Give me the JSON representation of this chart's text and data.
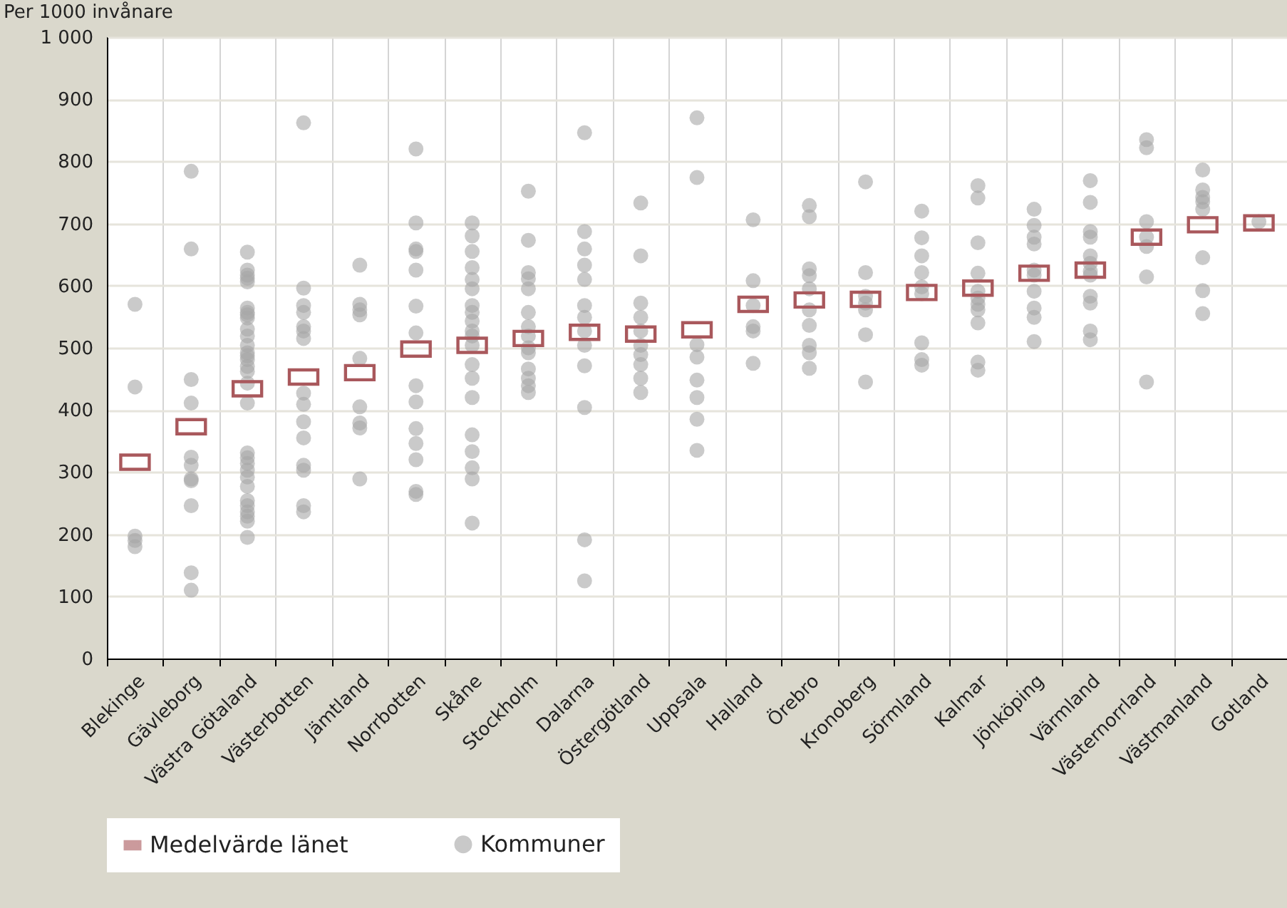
{
  "chart_data": {
    "type": "scatter",
    "ylabel": "Per 1000 invånare",
    "categories": [
      "Blekinge",
      "Gävleborg",
      "Västra Götaland",
      "Västerbotten",
      "Jämtland",
      "Norrbotten",
      "Skåne",
      "Stockholm",
      "Dalarna",
      "Östergötland",
      "Uppsala",
      "Halland",
      "Örebro",
      "Kronoberg",
      "Sörmland",
      "Kalmar",
      "Jönköping",
      "Värmland",
      "Västernorrland",
      "Västmanland",
      "Gotland"
    ],
    "ylim": [
      0,
      1000
    ],
    "yticks": [
      0,
      100,
      200,
      300,
      400,
      500,
      600,
      700,
      800,
      900,
      {
        "value": 1000,
        "label": "1 000"
      }
    ],
    "grid": true,
    "legend": "bottom",
    "series": [
      {
        "name": "Medelvärde länet",
        "marker": "square",
        "color": "#a9585c",
        "x": [
          "Blekinge",
          "Gävleborg",
          "Västra Götaland",
          "Västerbotten",
          "Jämtland",
          "Norrbotten",
          "Skåne",
          "Stockholm",
          "Dalarna",
          "Östergötland",
          "Uppsala",
          "Halland",
          "Örebro",
          "Kronoberg",
          "Sörmland",
          "Kalmar",
          "Jönköping",
          "Värmland",
          "Västernorrland",
          "Västmanland",
          "Gotland"
        ],
        "values": [
          316,
          373,
          434,
          453,
          460,
          498,
          504,
          515,
          525,
          522,
          529,
          570,
          577,
          578,
          589,
          596,
          620,
          625,
          678,
          698,
          701
        ]
      },
      {
        "name": "Kommuner",
        "marker": "circle",
        "color": "#a6a6a6",
        "x": [
          "Blekinge",
          "Blekinge",
          "Blekinge",
          "Blekinge",
          "Blekinge",
          "Gävleborg",
          "Gävleborg",
          "Gävleborg",
          "Gävleborg",
          "Gävleborg",
          "Gävleborg",
          "Gävleborg",
          "Gävleborg",
          "Gävleborg",
          "Gävleborg",
          "Gävleborg",
          "Västra Götaland",
          "Västra Götaland",
          "Västra Götaland",
          "Västra Götaland",
          "Västra Götaland",
          "Västra Götaland",
          "Västra Götaland",
          "Västra Götaland",
          "Västra Götaland",
          "Västra Götaland",
          "Västra Götaland",
          "Västra Götaland",
          "Västra Götaland",
          "Västra Götaland",
          "Västra Götaland",
          "Västra Götaland",
          "Västra Götaland",
          "Västra Götaland",
          "Västra Götaland",
          "Västra Götaland",
          "Västra Götaland",
          "Västra Götaland",
          "Västra Götaland",
          "Västra Götaland",
          "Västra Götaland",
          "Västra Götaland",
          "Västra Götaland",
          "Västra Götaland",
          "Västra Götaland",
          "Västra Götaland",
          "Västra Götaland",
          "Västerbotten",
          "Västerbotten",
          "Västerbotten",
          "Västerbotten",
          "Västerbotten",
          "Västerbotten",
          "Västerbotten",
          "Västerbotten",
          "Västerbotten",
          "Västerbotten",
          "Västerbotten",
          "Västerbotten",
          "Västerbotten",
          "Västerbotten",
          "Västerbotten",
          "Jämtland",
          "Jämtland",
          "Jämtland",
          "Jämtland",
          "Jämtland",
          "Jämtland",
          "Jämtland",
          "Jämtland",
          "Jämtland",
          "Norrbotten",
          "Norrbotten",
          "Norrbotten",
          "Norrbotten",
          "Norrbotten",
          "Norrbotten",
          "Norrbotten",
          "Norrbotten",
          "Norrbotten",
          "Norrbotten",
          "Norrbotten",
          "Norrbotten",
          "Norrbotten",
          "Norrbotten",
          "Skåne",
          "Skåne",
          "Skåne",
          "Skåne",
          "Skåne",
          "Skåne",
          "Skåne",
          "Skåne",
          "Skåne",
          "Skåne",
          "Skåne",
          "Skåne",
          "Skåne",
          "Skåne",
          "Skåne",
          "Skåne",
          "Skåne",
          "Skåne",
          "Skåne",
          "Skåne",
          "Stockholm",
          "Stockholm",
          "Stockholm",
          "Stockholm",
          "Stockholm",
          "Stockholm",
          "Stockholm",
          "Stockholm",
          "Stockholm",
          "Stockholm",
          "Stockholm",
          "Stockholm",
          "Stockholm",
          "Stockholm",
          "Dalarna",
          "Dalarna",
          "Dalarna",
          "Dalarna",
          "Dalarna",
          "Dalarna",
          "Dalarna",
          "Dalarna",
          "Dalarna",
          "Dalarna",
          "Dalarna",
          "Dalarna",
          "Dalarna",
          "Östergötland",
          "Östergötland",
          "Östergötland",
          "Östergötland",
          "Östergötland",
          "Östergötland",
          "Östergötland",
          "Östergötland",
          "Östergötland",
          "Östergötland",
          "Uppsala",
          "Uppsala",
          "Uppsala",
          "Uppsala",
          "Uppsala",
          "Uppsala",
          "Uppsala",
          "Uppsala",
          "Halland",
          "Halland",
          "Halland",
          "Halland",
          "Halland",
          "Halland",
          "Örebro",
          "Örebro",
          "Örebro",
          "Örebro",
          "Örebro",
          "Örebro",
          "Örebro",
          "Örebro",
          "Örebro",
          "Örebro",
          "Kronoberg",
          "Kronoberg",
          "Kronoberg",
          "Kronoberg",
          "Kronoberg",
          "Kronoberg",
          "Kronoberg",
          "Sörmland",
          "Sörmland",
          "Sörmland",
          "Sörmland",
          "Sörmland",
          "Sörmland",
          "Sörmland",
          "Sörmland",
          "Sörmland",
          "Kalmar",
          "Kalmar",
          "Kalmar",
          "Kalmar",
          "Kalmar",
          "Kalmar",
          "Kalmar",
          "Kalmar",
          "Kalmar",
          "Kalmar",
          "Kalmar",
          "Jönköping",
          "Jönköping",
          "Jönköping",
          "Jönköping",
          "Jönköping",
          "Jönköping",
          "Jönköping",
          "Jönköping",
          "Jönköping",
          "Jönköping",
          "Värmland",
          "Värmland",
          "Värmland",
          "Värmland",
          "Värmland",
          "Värmland",
          "Värmland",
          "Värmland",
          "Värmland",
          "Värmland",
          "Värmland",
          "Värmland",
          "Västernorrland",
          "Västernorrland",
          "Västernorrland",
          "Västernorrland",
          "Västernorrland",
          "Västernorrland",
          "Västernorrland",
          "Västmanland",
          "Västmanland",
          "Västmanland",
          "Västmanland",
          "Västmanland",
          "Västmanland",
          "Västmanland",
          "Västmanland",
          "Gotland"
        ],
        "values": [
          570,
          437,
          197,
          190,
          180,
          784,
          659,
          449,
          411,
          324,
          311,
          289,
          286,
          246,
          138,
          110,
          654,
          625,
          617,
          612,
          606,
          564,
          557,
          553,
          548,
          530,
          519,
          504,
          492,
          487,
          481,
          470,
          462,
          443,
          411,
          331,
          323,
          314,
          303,
          292,
          277,
          254,
          246,
          236,
          229,
          221,
          195,
          862,
          596,
          568,
          557,
          534,
          527,
          515,
          427,
          409,
          381,
          355,
          311,
          303,
          246,
          236,
          633,
          570,
          561,
          553,
          483,
          405,
          379,
          371,
          289,
          820,
          701,
          659,
          655,
          625,
          567,
          524,
          439,
          413,
          370,
          346,
          320,
          269,
          264,
          701,
          680,
          655,
          629,
          610,
          595,
          568,
          557,
          543,
          527,
          519,
          504,
          473,
          451,
          420,
          360,
          333,
          307,
          289,
          218,
          752,
          673,
          621,
          611,
          595,
          557,
          534,
          519,
          500,
          492,
          466,
          451,
          439,
          428,
          846,
          687,
          659,
          633,
          610,
          568,
          549,
          527,
          504,
          471,
          404,
          191,
          125,
          733,
          648,
          572,
          549,
          527,
          504,
          489,
          473,
          451,
          428,
          870,
          774,
          505,
          485,
          448,
          420,
          385,
          335,
          706,
          608,
          568,
          534,
          527,
          475,
          729,
          711,
          627,
          616,
          595,
          561,
          536,
          504,
          492,
          467,
          767,
          621,
          583,
          572,
          561,
          521,
          445,
          720,
          677,
          648,
          621,
          598,
          587,
          508,
          481,
          472,
          761,
          741,
          669,
          620,
          591,
          580,
          570,
          561,
          540,
          477,
          464,
          723,
          697,
          678,
          667,
          625,
          617,
          591,
          564,
          549,
          510,
          769,
          734,
          687,
          678,
          648,
          636,
          623,
          617,
          583,
          572,
          527,
          513,
          835,
          822,
          703,
          678,
          663,
          614,
          445,
          786,
          754,
          742,
          735,
          723,
          645,
          592,
          555,
          703
        ]
      }
    ]
  }
}
